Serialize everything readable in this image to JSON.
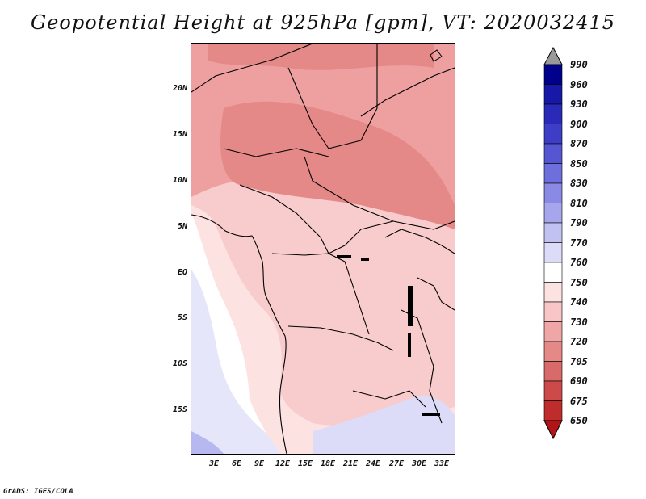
{
  "title": "Geopotential Height at 925hPa [gpm], VT: 2020032415",
  "map": {
    "lat_labels": [
      "20N",
      "15N",
      "10N",
      "5N",
      "EQ",
      "5S",
      "10S",
      "15S"
    ],
    "lon_labels": [
      "3E",
      "6E",
      "9E",
      "12E",
      "15E",
      "18E",
      "21E",
      "24E",
      "27E",
      "30E",
      "33E"
    ],
    "lat_range": [
      -19,
      25
    ],
    "lon_range": [
      0,
      35
    ]
  },
  "colorbar": {
    "levels": [
      "990",
      "960",
      "930",
      "900",
      "870",
      "850",
      "830",
      "810",
      "790",
      "770",
      "760",
      "750",
      "740",
      "730",
      "720",
      "705",
      "690",
      "675",
      "650"
    ],
    "colors": [
      "#00008b",
      "#1818a8",
      "#2a2ab8",
      "#3d3dc6",
      "#5656d2",
      "#6e6edc",
      "#8a8ae4",
      "#a6a6ec",
      "#c2c2f2",
      "#dcdcf8",
      "#ffffff",
      "#fde2e2",
      "#f8c6c6",
      "#f0a6a6",
      "#e58888",
      "#d86a6a",
      "#cc4a4a",
      "#bf2c2c",
      "#b21515"
    ]
  },
  "credit": "GrADS: IGES/COLA"
}
